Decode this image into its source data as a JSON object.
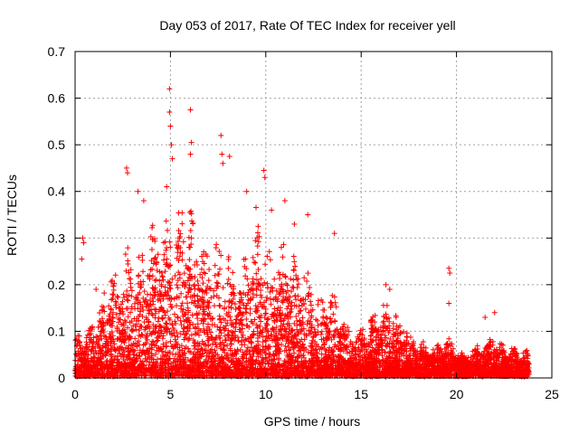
{
  "chart_data": {
    "type": "scatter",
    "title": "Day 053 of 2017, Rate Of TEC Index for receiver yell",
    "xlabel": "GPS time / hours",
    "ylabel": "ROTI / TECUs",
    "xlim": [
      0,
      25
    ],
    "ylim": [
      0,
      0.7
    ],
    "xticks": [
      0,
      5,
      10,
      15,
      20,
      25
    ],
    "yticks": [
      0,
      0.1,
      0.2,
      0.3,
      0.4,
      0.5,
      0.6,
      0.7
    ],
    "xtick_labels": [
      "0",
      "5",
      "10",
      "15",
      "20",
      "25"
    ],
    "ytick_labels": [
      "0",
      "0.1",
      "0.2",
      "0.3",
      "0.4",
      "0.5",
      "0.6",
      "0.7"
    ],
    "grid": true,
    "marker": "+",
    "color": "#ff0000",
    "envelope": {
      "description": "approximate upper envelope of the dense point cloud, hours vs ROTI",
      "x": [
        0,
        0.5,
        1,
        1.5,
        2,
        2.5,
        3,
        3.5,
        4,
        4.5,
        5,
        5.5,
        6,
        6.5,
        7,
        7.5,
        8,
        8.5,
        9,
        9.5,
        10,
        10.5,
        11,
        11.5,
        12,
        12.5,
        13,
        13.5,
        14,
        14.5,
        15,
        15.5,
        16,
        16.5,
        17,
        17.5,
        18,
        18.5,
        19,
        19.5,
        20,
        20.5,
        21,
        21.5,
        22,
        22.5,
        23,
        23.5,
        23.8
      ],
      "y": [
        0.1,
        0.1,
        0.14,
        0.2,
        0.25,
        0.28,
        0.32,
        0.3,
        0.36,
        0.38,
        0.42,
        0.38,
        0.42,
        0.33,
        0.3,
        0.33,
        0.3,
        0.24,
        0.33,
        0.4,
        0.33,
        0.3,
        0.33,
        0.28,
        0.3,
        0.2,
        0.18,
        0.2,
        0.15,
        0.12,
        0.11,
        0.13,
        0.18,
        0.16,
        0.14,
        0.12,
        0.09,
        0.08,
        0.07,
        0.1,
        0.06,
        0.05,
        0.07,
        0.09,
        0.1,
        0.07,
        0.07,
        0.06,
        0.06
      ]
    },
    "outliers": {
      "x": [
        4.95,
        4.95,
        5.0,
        5.05,
        5.1,
        6.05,
        6.1,
        6.05,
        7.65,
        7.7,
        7.75,
        8.1,
        2.7,
        2.75,
        9.9,
        9.95,
        0.4,
        0.45,
        0.35,
        13.6,
        19.6,
        19.65,
        19.6,
        4.8,
        9.0,
        10.3,
        11.0,
        11.5,
        12.2,
        21.5,
        22.0,
        16.3,
        16.5,
        3.3,
        3.6,
        1.1
      ],
      "y": [
        0.62,
        0.57,
        0.54,
        0.5,
        0.47,
        0.575,
        0.505,
        0.48,
        0.52,
        0.48,
        0.46,
        0.475,
        0.45,
        0.44,
        0.445,
        0.43,
        0.3,
        0.29,
        0.255,
        0.31,
        0.235,
        0.225,
        0.16,
        0.41,
        0.4,
        0.36,
        0.38,
        0.33,
        0.35,
        0.13,
        0.14,
        0.2,
        0.19,
        0.4,
        0.38,
        0.19
      ]
    },
    "sample_density_note": "many thousands of points; rendered procedurally from the envelope plus listed outliers"
  }
}
